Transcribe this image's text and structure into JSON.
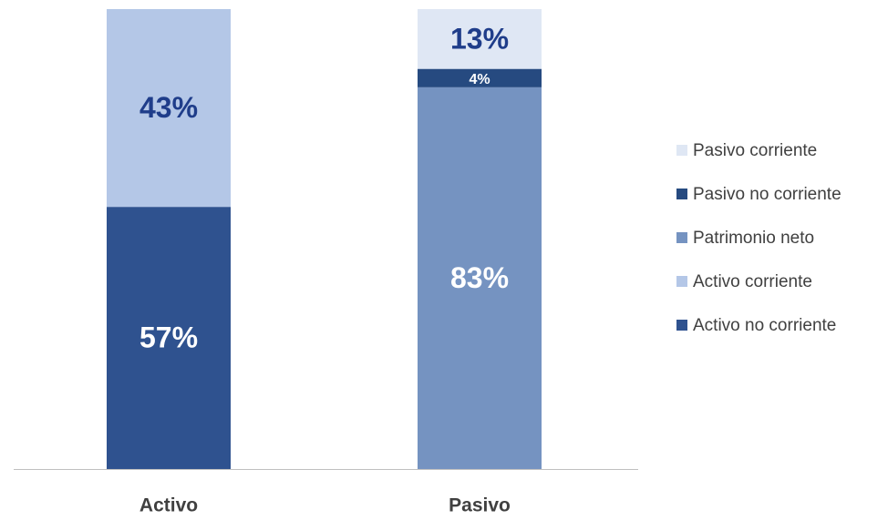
{
  "chart_data": {
    "type": "stacked_bar",
    "categories": [
      "Activo",
      "Pasivo"
    ],
    "series": [
      {
        "name": "Activo no corriente",
        "color": "#2f528f",
        "label_color": "#ffffff",
        "values": [
          57,
          null
        ],
        "value_labels": [
          "57%",
          null
        ]
      },
      {
        "name": "Activo corriente",
        "color": "#b4c7e7",
        "label_color": "#1f3d8a",
        "values": [
          43,
          null
        ],
        "value_labels": [
          "43%",
          null
        ]
      },
      {
        "name": "Patrimonio neto",
        "color": "#7593c1",
        "label_color": "#ffffff",
        "values": [
          null,
          83
        ],
        "value_labels": [
          null,
          "83%"
        ]
      },
      {
        "name": "Pasivo no corriente",
        "color": "#264a80",
        "label_color": "#ffffff",
        "values": [
          null,
          4
        ],
        "value_labels": [
          null,
          "4%"
        ]
      },
      {
        "name": "Pasivo corriente",
        "color": "#dfe7f4",
        "label_color": "#1f3d8a",
        "values": [
          null,
          13
        ],
        "value_labels": [
          null,
          "13%"
        ]
      }
    ],
    "ylim": [
      0,
      100
    ],
    "legend": "right"
  }
}
